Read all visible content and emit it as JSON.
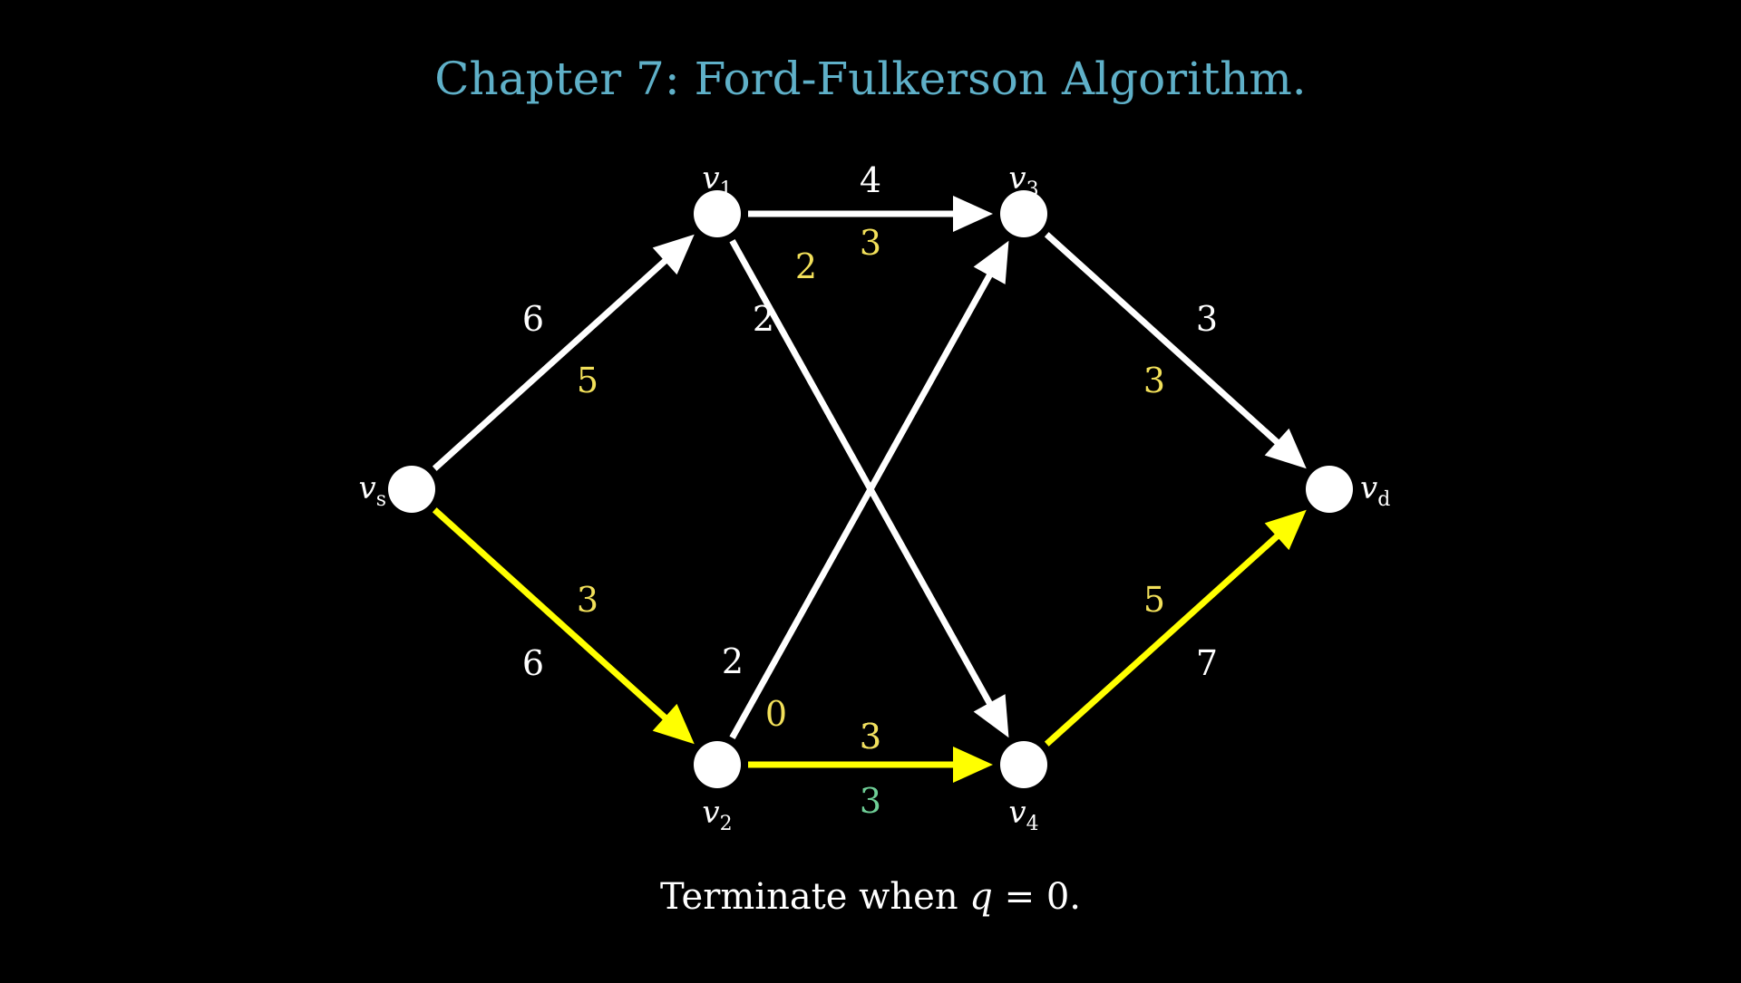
{
  "title": "Chapter 7: Ford-Fulkerson Algorithm.",
  "colors": {
    "background": "#000000",
    "title": "#5fb0c8",
    "edge_default": "#ffffff",
    "edge_highlight": "#ffff00",
    "label_capacity": "#ffffff",
    "label_residual": "#f2e05a",
    "label_bottleneck": "#6fcf97",
    "node": "#ffffff",
    "caption": "#ffffff"
  },
  "nodes": [
    {
      "id": "vs",
      "base": "v",
      "sub": "s"
    },
    {
      "id": "v1",
      "base": "v",
      "sub": "1"
    },
    {
      "id": "v2",
      "base": "v",
      "sub": "2"
    },
    {
      "id": "v3",
      "base": "v",
      "sub": "3"
    },
    {
      "id": "v4",
      "base": "v",
      "sub": "4"
    },
    {
      "id": "vd",
      "base": "v",
      "sub": "d"
    }
  ],
  "edges": [
    {
      "id": "vs-v1",
      "from": "vs",
      "to": "v1",
      "capacity": "6",
      "residual": "5",
      "highlight": false
    },
    {
      "id": "vs-v2",
      "from": "vs",
      "to": "v2",
      "capacity": "6",
      "residual": "3",
      "highlight": true
    },
    {
      "id": "v1-v3",
      "from": "v1",
      "to": "v3",
      "capacity": "4",
      "residual": "3",
      "highlight": false
    },
    {
      "id": "v1-v4",
      "from": "v1",
      "to": "v4",
      "capacity": "2",
      "residual": "2",
      "highlight": false
    },
    {
      "id": "v2-v3",
      "from": "v2",
      "to": "v3",
      "capacity": "2",
      "residual": "0",
      "highlight": false
    },
    {
      "id": "v2-v4",
      "from": "v2",
      "to": "v4",
      "capacity": "3",
      "residual": "3",
      "highlight": true,
      "bottleneck": "3"
    },
    {
      "id": "v3-vd",
      "from": "v3",
      "to": "vd",
      "capacity": "3",
      "residual": "3",
      "highlight": false
    },
    {
      "id": "v4-vd",
      "from": "v4",
      "to": "vd",
      "capacity": "7",
      "residual": "5",
      "highlight": true
    }
  ],
  "caption": {
    "prefix": "Terminate when ",
    "variable": "q",
    "suffix": " = 0."
  }
}
